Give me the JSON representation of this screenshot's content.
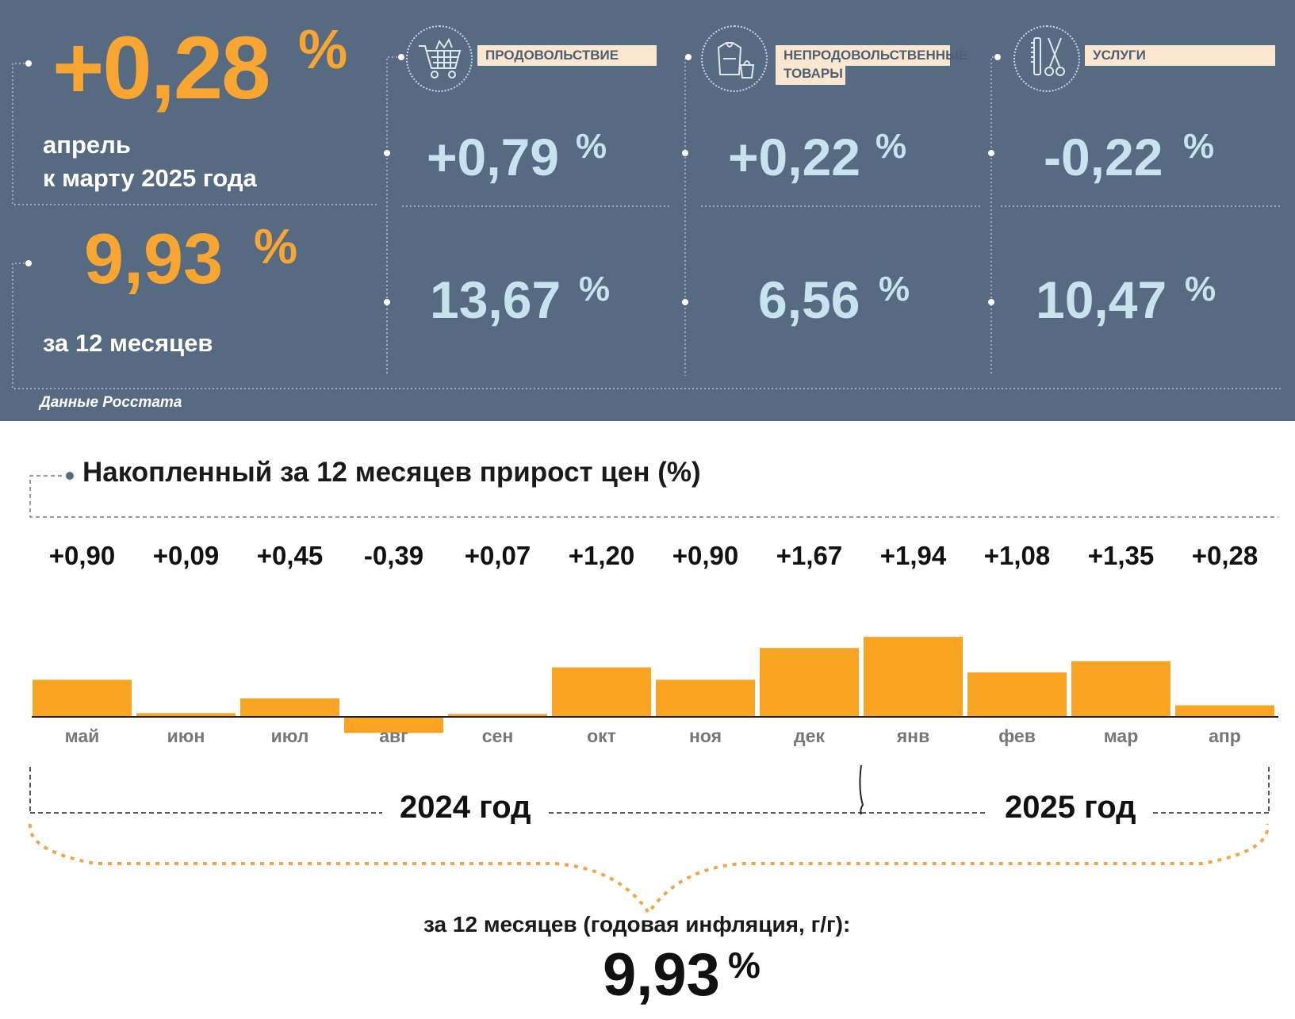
{
  "summary": {
    "month_change": {
      "value": "+0,28",
      "unit": "%",
      "label_line1": "апрель",
      "label_line2": "к марту 2025 года"
    },
    "year_change": {
      "value": "9,93",
      "unit": "%",
      "label": "за 12 месяцев"
    },
    "source": "Данные Росстата"
  },
  "categories": [
    {
      "label": "ПРОДОВОЛЬСТВИЕ",
      "icon": "shopping-cart-icon",
      "month": "+0,79",
      "year": "13,67",
      "unit": "%"
    },
    {
      "label_line1": "НЕПРОДОВОЛЬСТВЕННЫЕ",
      "label_line2": "ТОВАРЫ",
      "icon": "clothes-bag-icon",
      "month": "+0,22",
      "year": "6,56",
      "unit": "%"
    },
    {
      "label": "УСЛУГИ",
      "icon": "comb-scissors-icon",
      "month": "-0,22",
      "year": "10,47",
      "unit": "%"
    }
  ],
  "chart_data": {
    "type": "bar",
    "title": "Накопленный за 12 месяцев прирост цен (%)",
    "categories": [
      "май",
      "июн",
      "июл",
      "авг",
      "сен",
      "окт",
      "ноя",
      "дек",
      "янв",
      "фев",
      "мар",
      "апр"
    ],
    "values": [
      0.9,
      0.09,
      0.45,
      -0.39,
      0.07,
      1.2,
      0.9,
      1.67,
      1.94,
      1.08,
      1.35,
      0.28
    ],
    "value_labels": [
      "+0,90",
      "+0,09",
      "+0,45",
      "-0,39",
      "+0,07",
      "+1,20",
      "+0,90",
      "+1,67",
      "+1,94",
      "+1,08",
      "+1,35",
      "+0,28"
    ],
    "bar_color": "#f9a423",
    "year_groups": [
      "2024 год",
      "2025 год"
    ]
  },
  "footer": {
    "label": "за 12 месяцев (годовая инфляция, г/г):",
    "value": "9,93",
    "unit": "%"
  },
  "colors": {
    "panel_bg": "#566b81",
    "accent_orange": "#f9a531",
    "light_blue": "#c6e3ee",
    "label_bg": "#fbe7cf"
  }
}
